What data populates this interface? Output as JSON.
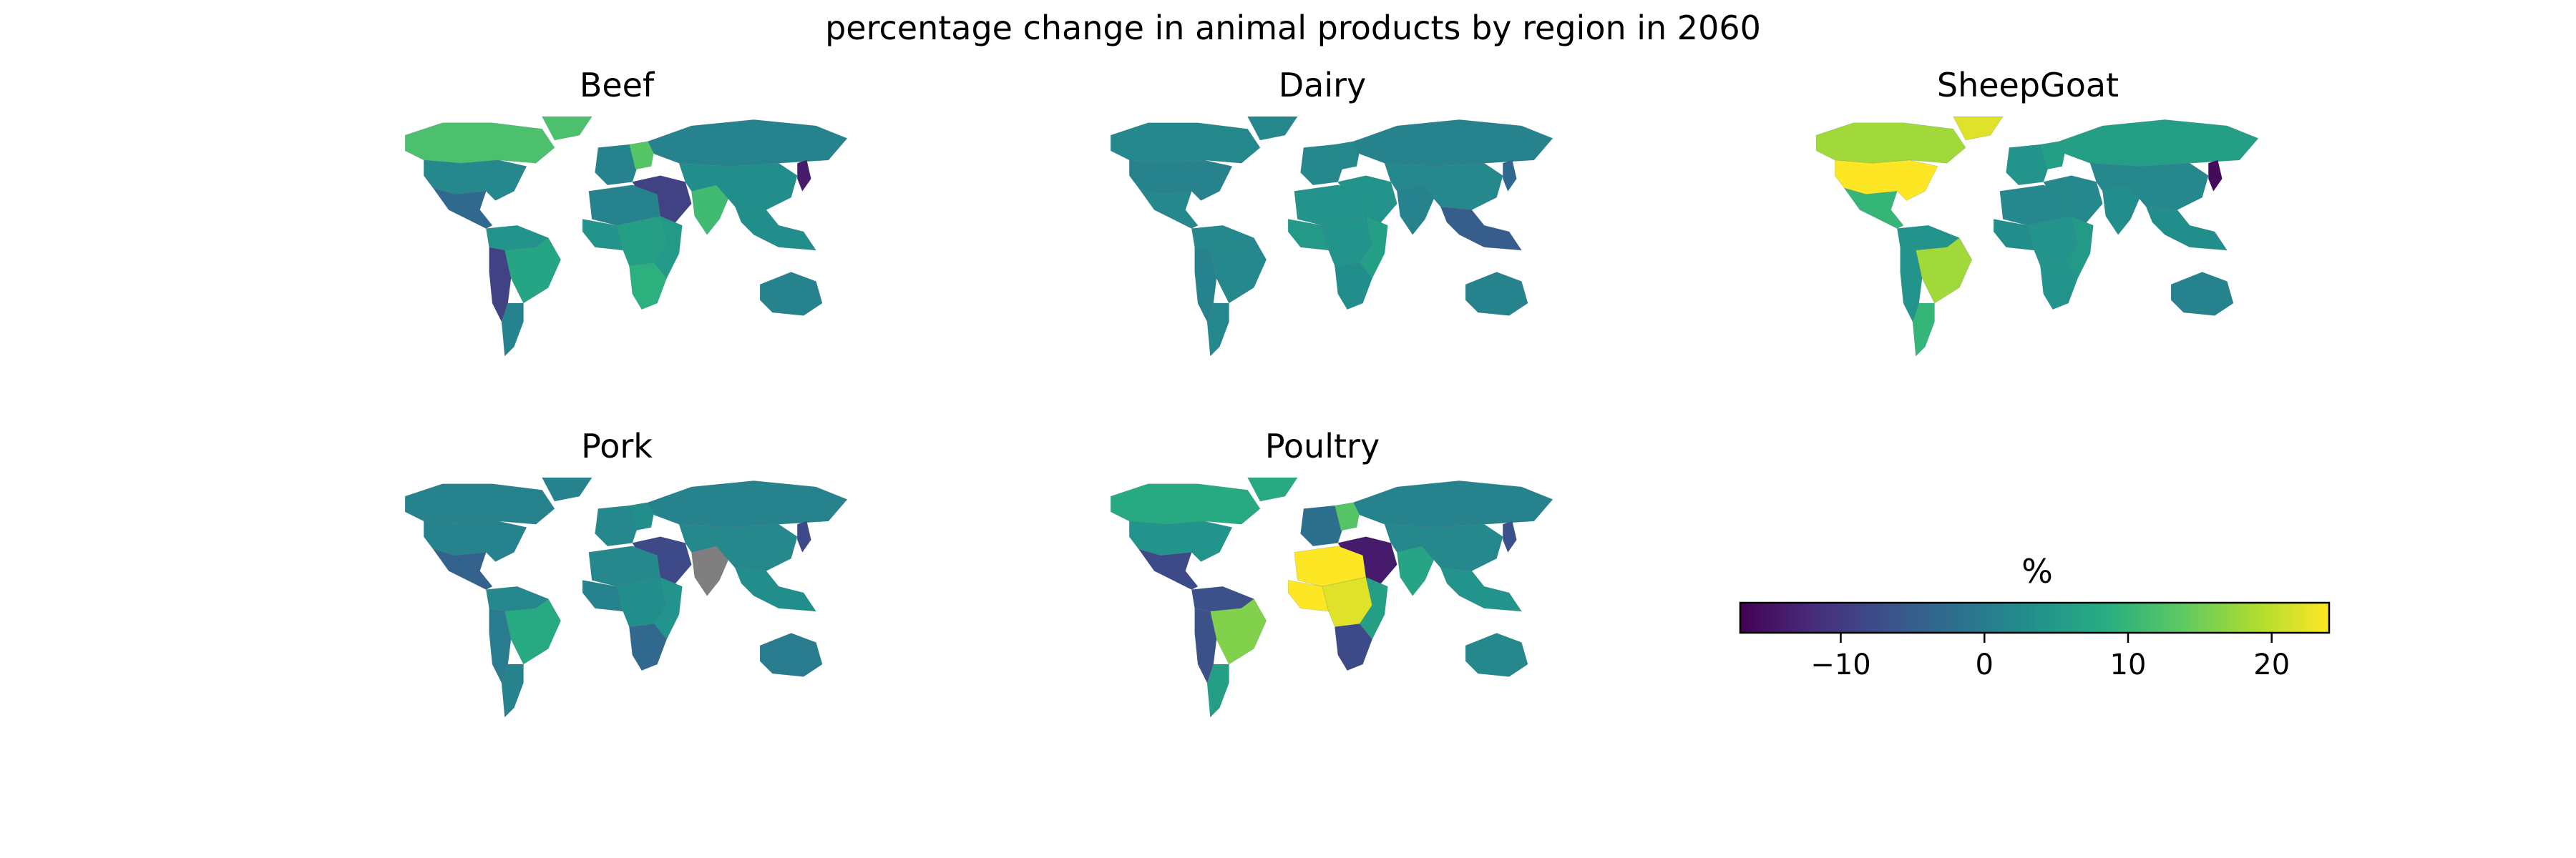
{
  "figure": {
    "title": "percentage change in animal products by region in 2060"
  },
  "panels": [
    {
      "title": "Beef",
      "regions": {
        "canada": 12,
        "usa": 2,
        "central_america": -3,
        "south_america_north": 4,
        "brazil": 7,
        "south_america_west": -9,
        "argentina": 1,
        "greenland": 12,
        "western_europe": 1,
        "ukraine": 13,
        "russia": 1,
        "middle_east": -9,
        "india": 11,
        "china": 3,
        "japan": -14,
        "southeast_asia": 3,
        "north_africa": 1,
        "west_africa": 4,
        "central_africa": 6,
        "east_africa": 5,
        "southern_africa": 9,
        "oceania": 1
      }
    },
    {
      "title": "Dairy",
      "regions": {
        "canada": 2,
        "usa": 1,
        "central_america": 2,
        "south_america_north": 2,
        "brazil": 2,
        "south_america_west": 1,
        "argentina": 2,
        "greenland": 2,
        "western_europe": 2,
        "ukraine": 2,
        "russia": 1,
        "middle_east": 4,
        "india": 1,
        "china": 2,
        "japan": -3,
        "southeast_asia": -5,
        "north_africa": 4,
        "west_africa": 5,
        "central_africa": 4,
        "east_africa": 6,
        "southern_africa": 3,
        "oceania": 1
      }
    },
    {
      "title": "SheepGoat",
      "regions": {
        "canada": 18,
        "usa": 24,
        "central_america": 10,
        "south_america_north": 4,
        "brazil": 18,
        "south_america_west": 4,
        "argentina": 10,
        "greenland": 22,
        "western_europe": 4,
        "ukraine": 6,
        "russia": 6,
        "middle_east": 2,
        "india": 3,
        "china": 2,
        "japan": -16,
        "southeast_asia": 3,
        "north_africa": 2,
        "west_africa": 3,
        "central_africa": 4,
        "east_africa": 5,
        "southern_africa": 4,
        "oceania": 1
      }
    },
    {
      "title": "Pork",
      "regions": {
        "canada": 1,
        "usa": 1,
        "central_america": -4,
        "south_america_north": 2,
        "brazil": 8,
        "south_america_west": 0,
        "argentina": 1,
        "greenland": 1,
        "western_europe": 2,
        "ukraine": 3,
        "russia": 1,
        "middle_east": -8,
        "india": "no_data",
        "china": 2,
        "japan": -8,
        "southeast_asia": 3,
        "north_africa": 2,
        "west_africa": 1,
        "central_africa": 3,
        "east_africa": 4,
        "southern_africa": -3,
        "oceania": 0
      }
    },
    {
      "title": "Poultry",
      "regions": {
        "canada": 8,
        "usa": 4,
        "central_america": -8,
        "south_america_north": -7,
        "brazil": 16,
        "south_america_west": -7,
        "argentina": 6,
        "greenland": 8,
        "western_europe": -2,
        "ukraine": 13,
        "russia": 1,
        "middle_east": -14,
        "india": 7,
        "china": 2,
        "japan": -7,
        "southeast_asia": 4,
        "north_africa": 25,
        "west_africa": 24,
        "central_africa": 22,
        "east_africa": 6,
        "southern_africa": -8,
        "oceania": 2
      }
    }
  ],
  "colorbar": {
    "label": "%",
    "min": -17,
    "max": 24,
    "ticks": [
      {
        "value": -10,
        "label": "−10"
      },
      {
        "value": 0,
        "label": "0"
      },
      {
        "value": 10,
        "label": "10"
      },
      {
        "value": 20,
        "label": "20"
      }
    ],
    "colormap": "viridis",
    "no_data_color": "#7f7f7f"
  }
}
